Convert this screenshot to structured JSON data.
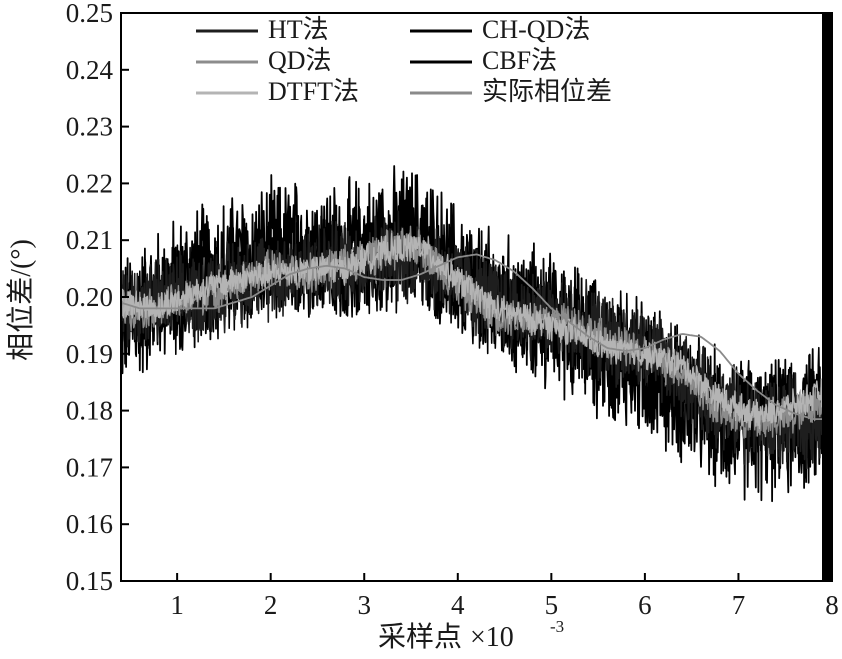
{
  "chart_data": {
    "type": "line",
    "xlabel": "采样点",
    "xlabel_multiplier": "×10",
    "xlabel_exponent": "-3",
    "ylabel": "相位差/(°)",
    "xlim": [
      0.4,
      8.0
    ],
    "ylim": [
      0.15,
      0.25
    ],
    "x_ticks": [
      1,
      2,
      3,
      4,
      5,
      6,
      7,
      8
    ],
    "x_tick_labels": [
      "1",
      "2",
      "3",
      "4",
      "5",
      "6",
      "7",
      "8"
    ],
    "y_ticks": [
      0.15,
      0.16,
      0.17,
      0.18,
      0.19,
      0.2,
      0.21,
      0.22,
      0.23,
      0.24,
      0.25
    ],
    "y_tick_labels": [
      "0.15",
      "0.16",
      "0.17",
      "0.18",
      "0.19",
      "0.20",
      "0.21",
      "0.22",
      "0.23",
      "0.24",
      "0.25"
    ],
    "grid": false,
    "legend_position": "top",
    "series": [
      {
        "name": "HT法",
        "color": "#1e1e1e",
        "x": [
          0.4,
          0.8,
          1.2,
          1.6,
          2.0,
          2.4,
          2.8,
          3.2,
          3.6,
          4.0,
          4.4,
          4.8,
          5.2,
          5.6,
          6.0,
          6.4,
          6.8,
          7.2,
          7.6,
          8.0
        ],
        "values": [
          0.198,
          0.199,
          0.2,
          0.203,
          0.204,
          0.205,
          0.206,
          0.207,
          0.207,
          0.203,
          0.199,
          0.197,
          0.195,
          0.193,
          0.19,
          0.186,
          0.181,
          0.178,
          0.178,
          0.178
        ]
      },
      {
        "name": "QD法",
        "color": "#8c8c8c",
        "x": [
          0.4,
          0.8,
          1.2,
          1.6,
          2.0,
          2.4,
          2.8,
          3.2,
          3.6,
          4.0,
          4.4,
          4.8,
          5.2,
          5.6,
          6.0,
          6.4,
          6.8,
          7.2,
          7.6,
          8.0
        ],
        "values": [
          0.198,
          0.198,
          0.2,
          0.202,
          0.205,
          0.204,
          0.206,
          0.208,
          0.209,
          0.202,
          0.197,
          0.196,
          0.196,
          0.192,
          0.19,
          0.187,
          0.18,
          0.178,
          0.179,
          0.183
        ]
      },
      {
        "name": "DTFT法",
        "color": "#b4b4b4",
        "x": [
          0.4,
          0.8,
          1.2,
          1.6,
          2.0,
          2.4,
          2.8,
          3.2,
          3.6,
          4.0,
          4.4,
          4.8,
          5.2,
          5.6,
          6.0,
          6.4,
          6.8,
          7.2,
          7.6,
          8.0
        ],
        "values": [
          0.199,
          0.198,
          0.201,
          0.203,
          0.204,
          0.205,
          0.205,
          0.208,
          0.209,
          0.203,
          0.198,
          0.196,
          0.194,
          0.191,
          0.19,
          0.188,
          0.182,
          0.179,
          0.181,
          0.184
        ]
      },
      {
        "name": "CH-QD法",
        "color": "#000000",
        "x": [
          0.4,
          0.8,
          1.2,
          1.6,
          2.0,
          2.4,
          2.8,
          3.2,
          3.6,
          4.0,
          4.4,
          4.8,
          5.2,
          5.6,
          6.0,
          6.4,
          6.8,
          7.2,
          7.6,
          8.0
        ],
        "values": [
          0.197,
          0.199,
          0.201,
          0.203,
          0.205,
          0.206,
          0.205,
          0.207,
          0.208,
          0.202,
          0.199,
          0.197,
          0.195,
          0.192,
          0.189,
          0.185,
          0.18,
          0.179,
          0.18,
          0.183
        ]
      },
      {
        "name": "CBF法",
        "color": "#000000",
        "x": [
          0.4,
          0.8,
          1.2,
          1.6,
          2.0,
          2.4,
          2.8,
          3.2,
          3.6,
          4.0,
          4.4,
          4.8,
          5.2,
          5.6,
          6.0,
          6.4,
          6.8,
          7.2,
          7.6,
          8.0
        ],
        "values": [
          0.195,
          0.2,
          0.204,
          0.206,
          0.208,
          0.209,
          0.208,
          0.21,
          0.211,
          0.204,
          0.199,
          0.197,
          0.194,
          0.19,
          0.187,
          0.183,
          0.178,
          0.176,
          0.177,
          0.18
        ]
      },
      {
        "name": "实际相位差",
        "color": "#8a8a8a",
        "x": [
          0.4,
          0.6,
          0.8,
          1.0,
          1.2,
          1.4,
          1.6,
          1.8,
          2.0,
          2.2,
          2.4,
          2.6,
          2.8,
          3.0,
          3.2,
          3.4,
          3.6,
          3.8,
          4.0,
          4.2,
          4.4,
          4.6,
          4.8,
          5.0,
          5.2,
          5.4,
          5.6,
          5.8,
          6.0,
          6.2,
          6.4,
          6.6,
          6.8,
          7.0,
          7.2,
          7.4,
          7.6,
          7.8,
          8.0
        ],
        "values": [
          0.199,
          0.198,
          0.198,
          0.198,
          0.198,
          0.198,
          0.199,
          0.2,
          0.202,
          0.204,
          0.205,
          0.2055,
          0.205,
          0.2035,
          0.203,
          0.203,
          0.204,
          0.2055,
          0.207,
          0.2075,
          0.2065,
          0.2045,
          0.2015,
          0.198,
          0.1955,
          0.193,
          0.191,
          0.1905,
          0.191,
          0.1925,
          0.1935,
          0.193,
          0.1905,
          0.1865,
          0.1835,
          0.181,
          0.1795,
          0.1785,
          0.1785
        ]
      }
    ]
  }
}
